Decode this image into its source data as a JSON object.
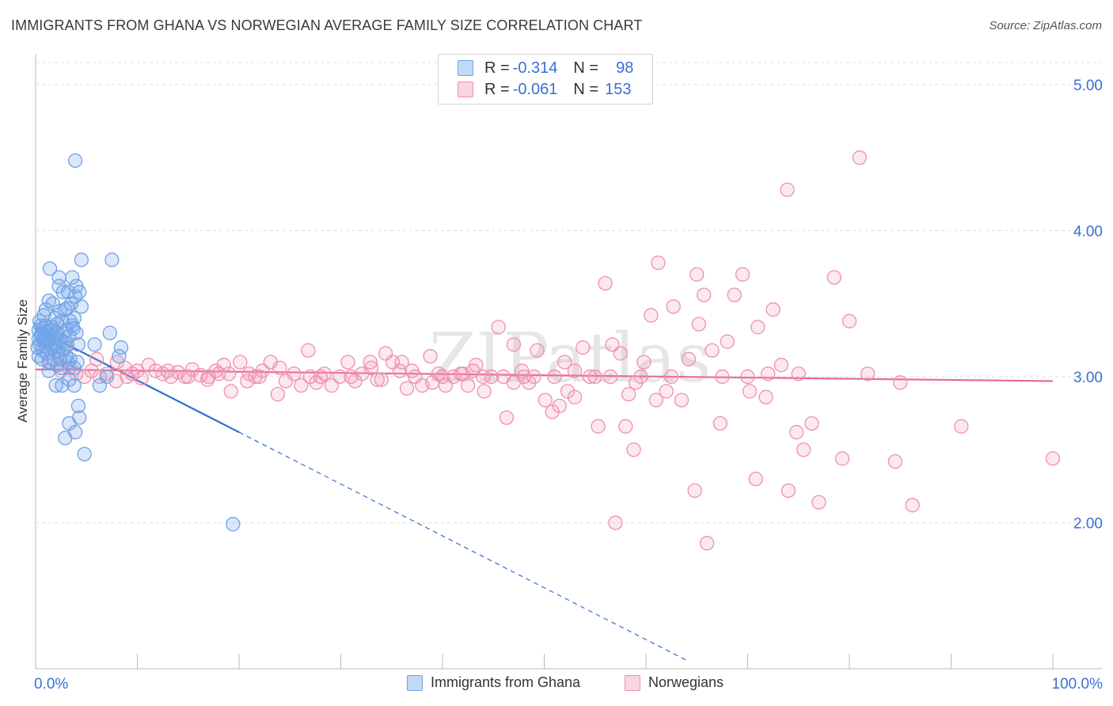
{
  "title": "IMMIGRANTS FROM GHANA VS NORWEGIAN AVERAGE FAMILY SIZE CORRELATION CHART",
  "source": "Source: ZipAtlas.com",
  "watermark": "ZIPatlas",
  "colors": {
    "blue": "#6fa2e8",
    "blue_fill": "rgba(120,170,235,0.28)",
    "blue_line": "#2f6fd0",
    "pink": "#ee90ae",
    "pink_fill": "rgba(240,150,180,0.22)",
    "pink_line": "#e8699a",
    "axis_text": "#3c6fd4",
    "grid": "#dcdcdc"
  },
  "legend": {
    "rows": [
      {
        "r_label": "R =",
        "r_value": "-0.314",
        "n_label": "N =",
        "n_value": "98"
      },
      {
        "r_label": "R =",
        "r_value": "-0.061",
        "n_label": "N =",
        "n_value": "153"
      }
    ]
  },
  "bottom_legend": {
    "series1": "Immigrants from Ghana",
    "series2": "Norwegians"
  },
  "chart_data": {
    "type": "scatter",
    "xlabel": "",
    "ylabel": "Average Family Size",
    "xlim": [
      0,
      100
    ],
    "ylim": [
      1.0,
      5.2
    ],
    "x_tick_labels": [
      "0.0%",
      "100.0%"
    ],
    "y_ticks": [
      2,
      3,
      4,
      5
    ],
    "y_tick_labels": [
      "2.00",
      "3.00",
      "4.00",
      "5.00"
    ],
    "grid": true,
    "legend_position": "top-center",
    "series": [
      {
        "name": "Immigrants from Ghana",
        "color": "blue",
        "r": -0.314,
        "n": 98,
        "trend": {
          "x0": 0,
          "y0": 3.33,
          "x1": 20,
          "y1": 2.62,
          "dashed_to_x": 64
        },
        "points": [
          [
            0.3,
            3.32
          ],
          [
            0.5,
            3.28
          ],
          [
            0.4,
            3.22
          ],
          [
            0.6,
            3.3
          ],
          [
            0.8,
            3.25
          ],
          [
            1.0,
            3.35
          ],
          [
            1.2,
            3.3
          ],
          [
            0.7,
            3.18
          ],
          [
            0.9,
            3.27
          ],
          [
            1.4,
            3.22
          ],
          [
            1.1,
            3.31
          ],
          [
            1.5,
            3.26
          ],
          [
            0.2,
            3.2
          ],
          [
            0.3,
            3.14
          ],
          [
            0.6,
            3.12
          ],
          [
            1.3,
            3.1
          ],
          [
            1.6,
            3.2
          ],
          [
            1.8,
            3.28
          ],
          [
            2.0,
            3.22
          ],
          [
            2.2,
            3.3
          ],
          [
            1.9,
            3.4
          ],
          [
            1.0,
            3.46
          ],
          [
            1.3,
            3.52
          ],
          [
            1.7,
            3.5
          ],
          [
            2.4,
            3.45
          ],
          [
            2.6,
            3.38
          ],
          [
            2.1,
            3.36
          ],
          [
            3.0,
            3.32
          ],
          [
            3.3,
            3.28
          ],
          [
            2.8,
            3.24
          ],
          [
            3.6,
            3.35
          ],
          [
            3.8,
            3.4
          ],
          [
            3.5,
            3.5
          ],
          [
            3.9,
            3.55
          ],
          [
            3.2,
            3.58
          ],
          [
            4.0,
            3.62
          ],
          [
            4.3,
            3.58
          ],
          [
            4.5,
            3.48
          ],
          [
            2.3,
            3.62
          ],
          [
            2.7,
            3.58
          ],
          [
            1.4,
            3.74
          ],
          [
            2.3,
            3.68
          ],
          [
            3.6,
            3.68
          ],
          [
            4.5,
            3.8
          ],
          [
            7.5,
            3.8
          ],
          [
            3.9,
            4.48
          ],
          [
            4.0,
            3.3
          ],
          [
            5.8,
            3.22
          ],
          [
            7.3,
            3.3
          ],
          [
            8.4,
            3.2
          ],
          [
            8.2,
            3.14
          ],
          [
            4.2,
            3.22
          ],
          [
            3.0,
            3.14
          ],
          [
            3.2,
            3.1
          ],
          [
            2.5,
            3.06
          ],
          [
            1.3,
            3.04
          ],
          [
            3.4,
            3.12
          ],
          [
            3.8,
            3.06
          ],
          [
            4.1,
            3.1
          ],
          [
            2.6,
            2.94
          ],
          [
            3.8,
            2.94
          ],
          [
            2.0,
            2.94
          ],
          [
            3.3,
            2.98
          ],
          [
            4.2,
            2.8
          ],
          [
            4.3,
            2.72
          ],
          [
            3.3,
            2.68
          ],
          [
            3.9,
            2.62
          ],
          [
            2.9,
            2.58
          ],
          [
            4.8,
            2.47
          ],
          [
            6.3,
            2.94
          ],
          [
            7.0,
            3.0
          ],
          [
            19.4,
            1.99
          ],
          [
            0.5,
            3.35
          ],
          [
            0.7,
            3.33
          ],
          [
            0.9,
            3.24
          ],
          [
            1.1,
            3.16
          ],
          [
            1.6,
            3.34
          ],
          [
            2.2,
            3.18
          ],
          [
            2.5,
            3.25
          ],
          [
            3.1,
            3.22
          ],
          [
            3.4,
            3.38
          ],
          [
            1.8,
            3.12
          ],
          [
            2.1,
            3.08
          ],
          [
            0.4,
            3.38
          ],
          [
            0.8,
            3.42
          ],
          [
            1.5,
            3.32
          ],
          [
            2.9,
            3.46
          ],
          [
            3.7,
            3.33
          ],
          [
            2.4,
            3.12
          ],
          [
            1.2,
            3.26
          ],
          [
            0.6,
            3.29
          ],
          [
            1.7,
            3.27
          ],
          [
            2.0,
            3.3
          ],
          [
            2.7,
            3.19
          ],
          [
            3.1,
            3.47
          ],
          [
            1.9,
            3.22
          ],
          [
            0.3,
            3.26
          ],
          [
            1.0,
            3.21
          ]
        ]
      },
      {
        "name": "Norwegians",
        "color": "pink",
        "r": -0.061,
        "n": 153,
        "trend": {
          "x0": 0,
          "y0": 3.05,
          "x1": 100,
          "y1": 2.97
        },
        "points": [
          [
            1.5,
            3.1
          ],
          [
            2.2,
            3.15
          ],
          [
            3.3,
            3.06
          ],
          [
            4.0,
            3.02
          ],
          [
            4.8,
            3.0
          ],
          [
            5.5,
            3.04
          ],
          [
            6.3,
            3.0
          ],
          [
            7.0,
            3.02
          ],
          [
            7.9,
            2.97
          ],
          [
            8.8,
            3.06
          ],
          [
            9.5,
            3.02
          ],
          [
            10.4,
            2.99
          ],
          [
            11.1,
            3.08
          ],
          [
            11.8,
            3.04
          ],
          [
            12.5,
            3.02
          ],
          [
            13.3,
            3.0
          ],
          [
            14.0,
            3.03
          ],
          [
            14.7,
            3.0
          ],
          [
            15.4,
            3.05
          ],
          [
            16.2,
            3.01
          ],
          [
            16.9,
            2.98
          ],
          [
            17.7,
            3.04
          ],
          [
            18.5,
            3.08
          ],
          [
            19.2,
            2.9
          ],
          [
            20.1,
            3.1
          ],
          [
            20.8,
            2.97
          ],
          [
            21.6,
            3.0
          ],
          [
            22.3,
            3.04
          ],
          [
            23.1,
            3.1
          ],
          [
            23.8,
            2.88
          ],
          [
            24.6,
            2.97
          ],
          [
            25.4,
            3.02
          ],
          [
            26.1,
            2.94
          ],
          [
            26.8,
            3.18
          ],
          [
            27.6,
            2.96
          ],
          [
            28.4,
            3.02
          ],
          [
            29.1,
            2.94
          ],
          [
            29.9,
            3.0
          ],
          [
            30.7,
            3.1
          ],
          [
            31.4,
            2.97
          ],
          [
            32.1,
            3.02
          ],
          [
            32.9,
            3.1
          ],
          [
            33.6,
            2.98
          ],
          [
            34.4,
            3.16
          ],
          [
            35.1,
            3.1
          ],
          [
            35.8,
            3.04
          ],
          [
            36.5,
            2.92
          ],
          [
            37.3,
            3.0
          ],
          [
            38.0,
            2.94
          ],
          [
            38.8,
            3.14
          ],
          [
            39.6,
            3.02
          ],
          [
            40.3,
            2.94
          ],
          [
            41.1,
            3.0
          ],
          [
            41.8,
            3.02
          ],
          [
            42.5,
            2.94
          ],
          [
            43.3,
            3.08
          ],
          [
            44.1,
            2.9
          ],
          [
            44.8,
            3.0
          ],
          [
            45.5,
            3.34
          ],
          [
            46.3,
            2.72
          ],
          [
            47.0,
            3.22
          ],
          [
            47.8,
            3.04
          ],
          [
            48.5,
            2.96
          ],
          [
            49.3,
            3.18
          ],
          [
            50.1,
            2.84
          ],
          [
            50.8,
            2.76
          ],
          [
            51.5,
            2.8
          ],
          [
            52.3,
            2.9
          ],
          [
            53.0,
            2.86
          ],
          [
            53.8,
            3.2
          ],
          [
            54.5,
            3.0
          ],
          [
            55.3,
            2.66
          ],
          [
            56.0,
            3.64
          ],
          [
            56.7,
            3.22
          ],
          [
            57.5,
            3.16
          ],
          [
            58.3,
            2.88
          ],
          [
            59.0,
            2.96
          ],
          [
            59.8,
            3.1
          ],
          [
            60.5,
            3.42
          ],
          [
            61.2,
            3.78
          ],
          [
            62.0,
            2.9
          ],
          [
            62.7,
            3.48
          ],
          [
            63.5,
            2.84
          ],
          [
            64.2,
            3.12
          ],
          [
            65.0,
            3.7
          ],
          [
            65.7,
            3.56
          ],
          [
            66.5,
            3.18
          ],
          [
            67.3,
            2.68
          ],
          [
            68.0,
            3.24
          ],
          [
            68.7,
            3.56
          ],
          [
            69.5,
            3.7
          ],
          [
            70.2,
            2.9
          ],
          [
            71.0,
            3.34
          ],
          [
            71.8,
            2.86
          ],
          [
            72.5,
            3.46
          ],
          [
            73.3,
            3.08
          ],
          [
            74.0,
            2.22
          ],
          [
            74.8,
            2.62
          ],
          [
            75.5,
            2.5
          ],
          [
            76.3,
            2.68
          ],
          [
            77.0,
            2.14
          ],
          [
            78.5,
            3.68
          ],
          [
            79.3,
            2.44
          ],
          [
            80.0,
            3.38
          ],
          [
            81.0,
            4.5
          ],
          [
            81.8,
            3.02
          ],
          [
            84.5,
            2.42
          ],
          [
            85.0,
            2.96
          ],
          [
            86.2,
            2.12
          ],
          [
            91.0,
            2.66
          ],
          [
            100.0,
            2.44
          ],
          [
            70.8,
            2.3
          ],
          [
            72.0,
            3.02
          ],
          [
            61.0,
            2.84
          ],
          [
            58.0,
            2.66
          ],
          [
            64.8,
            2.22
          ],
          [
            66.0,
            1.86
          ],
          [
            58.8,
            2.5
          ],
          [
            57.0,
            2.0
          ],
          [
            73.9,
            4.28
          ],
          [
            19.0,
            3.02
          ],
          [
            27.0,
            3.0
          ],
          [
            36.0,
            3.1
          ],
          [
            42.0,
            3.02
          ],
          [
            48.0,
            3.0
          ],
          [
            52.0,
            3.1
          ],
          [
            55.0,
            3.0
          ],
          [
            44.0,
            3.0
          ],
          [
            33.0,
            3.06
          ],
          [
            39.0,
            2.96
          ],
          [
            46.0,
            3.0
          ],
          [
            31.0,
            3.0
          ],
          [
            24.0,
            3.06
          ],
          [
            18.0,
            3.02
          ],
          [
            13.0,
            3.04
          ],
          [
            8.0,
            3.1
          ],
          [
            6.0,
            3.12
          ],
          [
            3.0,
            3.2
          ],
          [
            2.5,
            3.04
          ],
          [
            9.0,
            3.0
          ],
          [
            10.0,
            3.04
          ],
          [
            15.0,
            3.0
          ],
          [
            17.0,
            3.0
          ],
          [
            21.0,
            3.02
          ],
          [
            22.0,
            3.0
          ],
          [
            28.0,
            3.0
          ],
          [
            34.0,
            2.98
          ],
          [
            37.0,
            3.04
          ],
          [
            40.0,
            3.0
          ],
          [
            43.0,
            3.04
          ],
          [
            47.0,
            2.96
          ],
          [
            49.0,
            3.0
          ],
          [
            51.0,
            3.0
          ],
          [
            53.0,
            3.04
          ],
          [
            56.5,
            3.0
          ],
          [
            59.5,
            3.0
          ],
          [
            62.5,
            3.0
          ],
          [
            67.5,
            3.0
          ],
          [
            70.0,
            3.0
          ],
          [
            75.0,
            3.02
          ],
          [
            65.2,
            3.36
          ]
        ]
      }
    ]
  }
}
